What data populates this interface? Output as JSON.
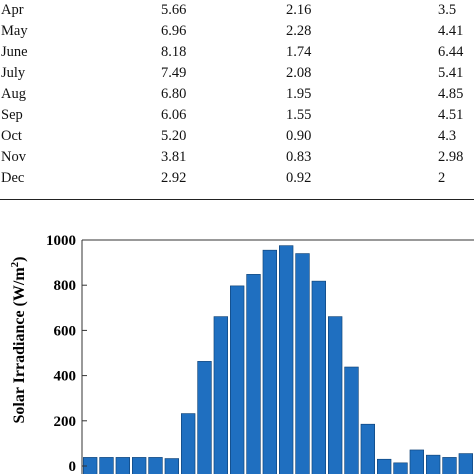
{
  "table": {
    "rows": [
      [
        "Apr",
        "5.66",
        "2.16",
        "3.5"
      ],
      [
        "May",
        "6.96",
        "2.28",
        "4.41"
      ],
      [
        "June",
        "8.18",
        "1.74",
        "6.44"
      ],
      [
        "July",
        "7.49",
        "2.08",
        "5.41"
      ],
      [
        "Aug",
        "6.80",
        "1.95",
        "4.85"
      ],
      [
        "Sep",
        "6.06",
        "1.55",
        "4.51"
      ],
      [
        "Oct",
        "5.20",
        "0.90",
        "4.3"
      ],
      [
        "Nov",
        "3.81",
        "0.83",
        "2.98"
      ],
      [
        "Dec",
        "2.92",
        "0.92",
        "2"
      ]
    ]
  },
  "chart_data": {
    "type": "bar",
    "ylabel": "Solar Irradiance (W/m²)",
    "ylabel_main": "Solar Irradiance (W/m",
    "ylabel_sup": "2",
    "ylabel_close": ")",
    "ylim": [
      0,
      1000
    ],
    "yticks": [
      "0",
      "200",
      "400",
      "600",
      "800",
      "1000"
    ],
    "ytick_values": [
      0,
      200,
      400,
      600,
      800,
      1000
    ],
    "grid": false,
    "bar_color": "#1f6fc0",
    "values": [
      38,
      38,
      38,
      38,
      38,
      33,
      232,
      463,
      661,
      797,
      848,
      955,
      975,
      940,
      818,
      661,
      438,
      185,
      30,
      14,
      71,
      48,
      38,
      55
    ]
  }
}
